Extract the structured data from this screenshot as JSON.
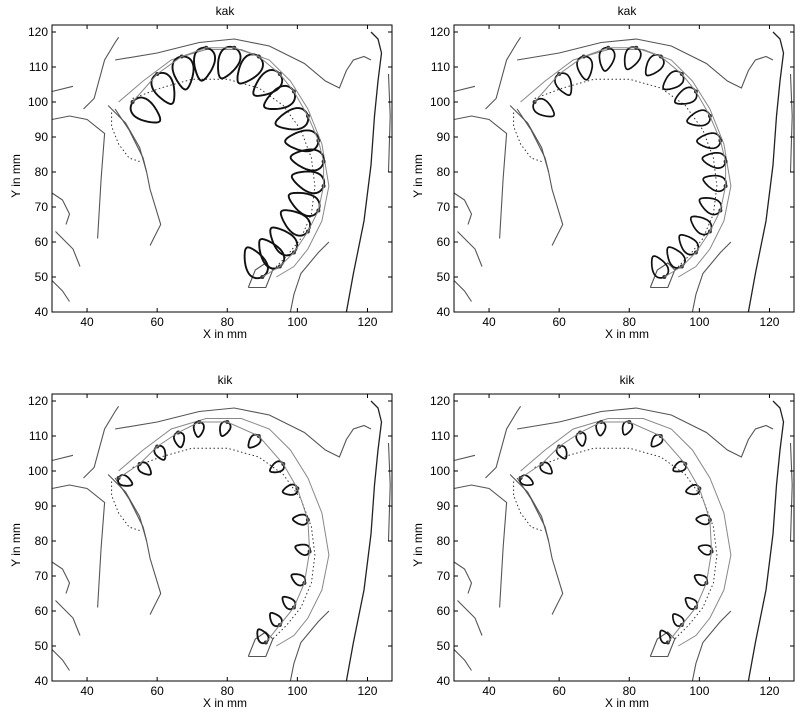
{
  "chart_data": [
    {
      "type": "line",
      "title": "kak",
      "xlabel": "X in mm",
      "ylabel": "Y in mm",
      "xlim": [
        30,
        127
      ],
      "ylim": [
        40,
        122
      ],
      "xticks": [
        40,
        60,
        80,
        100,
        120
      ],
      "yticks": [
        40,
        50,
        60,
        70,
        80,
        90,
        100,
        110,
        120
      ],
      "grid": false,
      "loop_scale": 1.0,
      "loop_width": 1.9,
      "fleshpoints": [
        {
          "x": 53,
          "y": 100
        },
        {
          "x": 60,
          "y": 108
        },
        {
          "x": 67,
          "y": 113
        },
        {
          "x": 74,
          "y": 115.5
        },
        {
          "x": 82,
          "y": 115.5
        },
        {
          "x": 89,
          "y": 113
        },
        {
          "x": 95,
          "y": 108
        },
        {
          "x": 99,
          "y": 103
        },
        {
          "x": 103,
          "y": 96
        },
        {
          "x": 106,
          "y": 89
        },
        {
          "x": 107.5,
          "y": 83
        },
        {
          "x": 107.5,
          "y": 76
        },
        {
          "x": 106,
          "y": 69
        },
        {
          "x": 103,
          "y": 63
        },
        {
          "x": 99,
          "y": 57
        },
        {
          "x": 95,
          "y": 53
        },
        {
          "x": 90,
          "y": 50
        }
      ]
    },
    {
      "type": "line",
      "title": "kak",
      "xlabel": "X in mm",
      "ylabel": "Y in mm",
      "xlim": [
        30,
        127
      ],
      "ylim": [
        40,
        122
      ],
      "xticks": [
        40,
        60,
        80,
        100,
        120
      ],
      "yticks": [
        40,
        50,
        60,
        70,
        80,
        90,
        100,
        110,
        120
      ],
      "grid": false,
      "loop_scale": 0.65,
      "loop_width": 1.7,
      "fleshpoints": [
        {
          "x": 53,
          "y": 100
        },
        {
          "x": 60,
          "y": 108
        },
        {
          "x": 67,
          "y": 113
        },
        {
          "x": 74,
          "y": 115.5
        },
        {
          "x": 82,
          "y": 115.5
        },
        {
          "x": 89,
          "y": 113
        },
        {
          "x": 95,
          "y": 108
        },
        {
          "x": 99,
          "y": 103
        },
        {
          "x": 103,
          "y": 96
        },
        {
          "x": 106,
          "y": 89
        },
        {
          "x": 107.5,
          "y": 83
        },
        {
          "x": 107.5,
          "y": 76
        },
        {
          "x": 106,
          "y": 69
        },
        {
          "x": 103,
          "y": 63
        },
        {
          "x": 99,
          "y": 57
        },
        {
          "x": 95,
          "y": 53
        },
        {
          "x": 90,
          "y": 50
        }
      ]
    },
    {
      "type": "line",
      "title": "kik",
      "xlabel": "X in mm",
      "ylabel": "Y in mm",
      "xlim": [
        30,
        127
      ],
      "ylim": [
        40,
        122
      ],
      "xticks": [
        40,
        60,
        80,
        100,
        120
      ],
      "yticks": [
        40,
        50,
        60,
        70,
        80,
        90,
        100,
        110,
        120
      ],
      "grid": false,
      "loop_scale": 0.35,
      "loop_width": 1.8,
      "fleshpoints": [
        {
          "x": 49,
          "y": 98
        },
        {
          "x": 55,
          "y": 102
        },
        {
          "x": 60,
          "y": 107
        },
        {
          "x": 66,
          "y": 111
        },
        {
          "x": 72,
          "y": 114
        },
        {
          "x": 80,
          "y": 114
        },
        {
          "x": 89,
          "y": 110
        },
        {
          "x": 96,
          "y": 102
        },
        {
          "x": 100,
          "y": 95
        },
        {
          "x": 103,
          "y": 86
        },
        {
          "x": 103.5,
          "y": 77
        },
        {
          "x": 102,
          "y": 68
        },
        {
          "x": 99,
          "y": 61
        },
        {
          "x": 95,
          "y": 56
        },
        {
          "x": 91,
          "y": 51
        }
      ]
    },
    {
      "type": "line",
      "title": "kik",
      "xlabel": "X in mm",
      "ylabel": "Y in mm",
      "xlim": [
        30,
        127
      ],
      "ylim": [
        40,
        122
      ],
      "xticks": [
        40,
        60,
        80,
        100,
        120
      ],
      "yticks": [
        40,
        50,
        60,
        70,
        80,
        90,
        100,
        110,
        120
      ],
      "grid": false,
      "loop_scale": 0.3,
      "loop_width": 1.7,
      "fleshpoints": [
        {
          "x": 49,
          "y": 98
        },
        {
          "x": 55,
          "y": 102
        },
        {
          "x": 60,
          "y": 107
        },
        {
          "x": 66,
          "y": 111
        },
        {
          "x": 72,
          "y": 114
        },
        {
          "x": 80,
          "y": 114
        },
        {
          "x": 89,
          "y": 110
        },
        {
          "x": 96,
          "y": 102
        },
        {
          "x": 100,
          "y": 95
        },
        {
          "x": 103,
          "y": 86
        },
        {
          "x": 103.5,
          "y": 77
        },
        {
          "x": 102,
          "y": 68
        },
        {
          "x": 99,
          "y": 61
        },
        {
          "x": 95,
          "y": 56
        },
        {
          "x": 91,
          "y": 51
        }
      ]
    }
  ]
}
